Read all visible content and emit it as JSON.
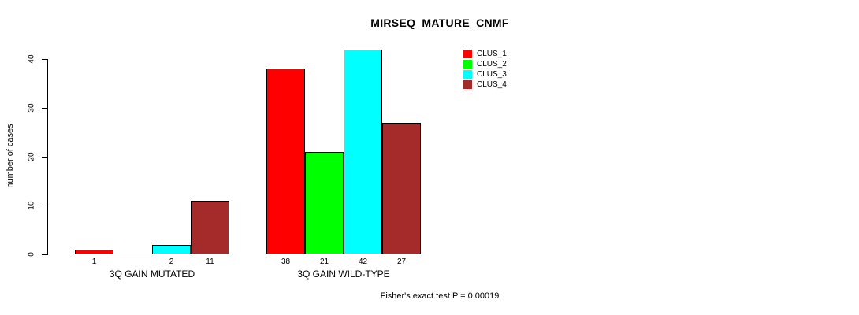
{
  "chart_data": {
    "type": "bar",
    "title": "MIRSEQ_MATURE_CNMF",
    "ylabel": "number of cases",
    "xlabel": "",
    "ylim": [
      0,
      40
    ],
    "yticks": [
      0,
      10,
      20,
      30,
      40
    ],
    "grid": false,
    "legend_position": "top-right",
    "categories": [
      "3Q GAIN MUTATED",
      "3Q GAIN WILD-TYPE"
    ],
    "series": [
      {
        "name": "CLUS_1",
        "color": "#FF0000",
        "values": [
          1,
          38
        ]
      },
      {
        "name": "CLUS_2",
        "color": "#00FF00",
        "values": [
          0,
          21
        ]
      },
      {
        "name": "CLUS_3",
        "color": "#00FFFF",
        "values": [
          2,
          42
        ]
      },
      {
        "name": "CLUS_4",
        "color": "#A52A2A",
        "values": [
          11,
          27
        ]
      }
    ],
    "bar_value_labels": [
      [
        "1",
        "",
        "2",
        "11"
      ],
      [
        "38",
        "21",
        "42",
        "27"
      ]
    ],
    "annotation": "Fisher's exact test P = 0.00019",
    "colors": {
      "background": "#FFFFFF",
      "axis": "#000000",
      "bar_border": "#000000"
    }
  }
}
